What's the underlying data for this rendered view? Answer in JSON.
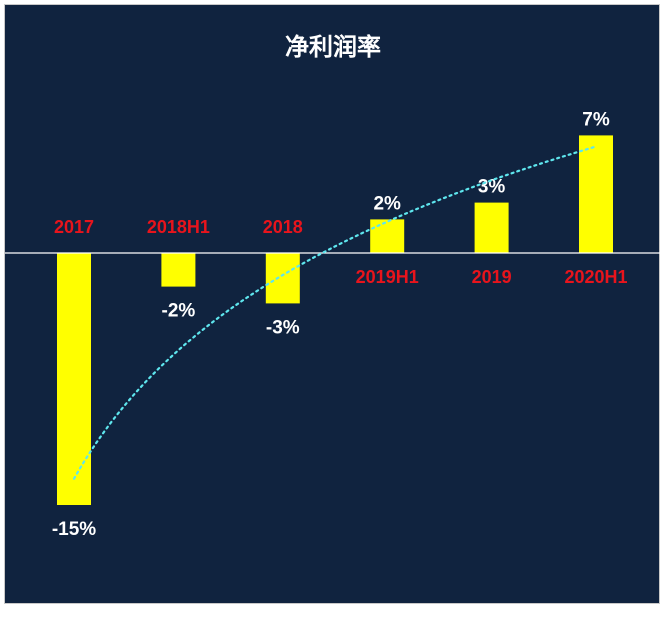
{
  "chart_data": {
    "type": "bar",
    "title": "净利润率",
    "categories": [
      "2017",
      "2018H1",
      "2018",
      "2019H1",
      "2019",
      "2020H1"
    ],
    "values": [
      -15,
      -2,
      -3,
      2,
      3,
      7
    ],
    "value_labels": [
      "-15%",
      "-2%",
      "-3%",
      "2%",
      "3%",
      "7%"
    ],
    "unit": "%",
    "trendline": "logarithmic",
    "ylim": [
      -17,
      8
    ],
    "grid": false,
    "legend": "none"
  },
  "colors": {
    "background": "#10233f",
    "bar": "#ffff00",
    "category_label": "#e8141c",
    "value_label": "#ffffff",
    "trendline": "#5ee6ee",
    "baseline": "#ffffff"
  }
}
